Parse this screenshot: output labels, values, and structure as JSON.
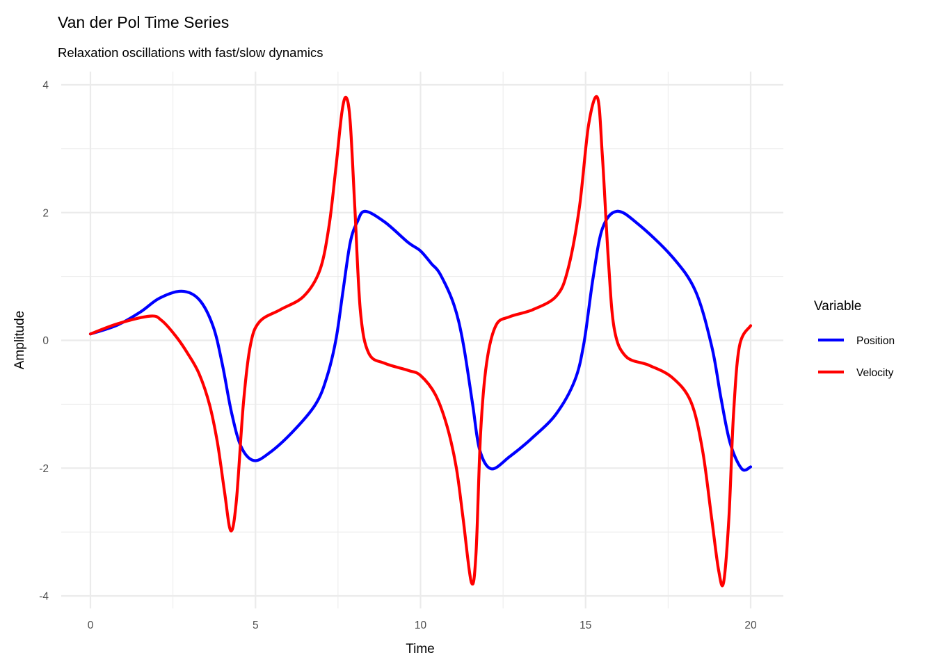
{
  "chart_data": {
    "type": "line",
    "title": "Van der Pol Time Series",
    "subtitle": "Relaxation oscillations with fast/slow dynamics",
    "xlabel": "Time",
    "ylabel": "Amplitude",
    "xlim": [
      0,
      20
    ],
    "ylim": [
      -4,
      4
    ],
    "xticks": [
      0,
      5,
      10,
      15,
      20
    ],
    "yticks": [
      -4,
      -2,
      0,
      2,
      4
    ],
    "xtick_labels": [
      "0",
      "5",
      "10",
      "15",
      "20"
    ],
    "ytick_labels": [
      "-4",
      "-2",
      "0",
      "2",
      "4"
    ],
    "grid": true,
    "legend": {
      "title": "Variable",
      "placement": "right"
    },
    "series": [
      {
        "name": "Position",
        "color": "#0000ff",
        "x": [
          0,
          0.82,
          1.53,
          2.09,
          2.76,
          3.29,
          3.71,
          3.99,
          4.27,
          4.56,
          4.94,
          5.4,
          6.11,
          6.81,
          7.16,
          7.44,
          7.65,
          7.87,
          8.08,
          8.32,
          8.92,
          9.63,
          10.0,
          10.33,
          10.59,
          11.01,
          11.29,
          11.58,
          11.79,
          12.14,
          12.7,
          13.4,
          14.11,
          14.67,
          14.95,
          15.23,
          15.51,
          15.94,
          16.57,
          17.62,
          18.33,
          18.82,
          19.1,
          19.38,
          19.73,
          20.0
        ],
        "y": [
          0.1,
          0.24,
          0.45,
          0.66,
          0.77,
          0.64,
          0.23,
          -0.36,
          -1.12,
          -1.66,
          -1.88,
          -1.77,
          -1.44,
          -1.01,
          -0.58,
          0.02,
          0.77,
          1.53,
          1.85,
          2.02,
          1.85,
          1.53,
          1.4,
          1.2,
          1.04,
          0.56,
          -0.04,
          -1.01,
          -1.71,
          -2.01,
          -1.82,
          -1.52,
          -1.15,
          -0.63,
          -0.04,
          0.99,
          1.75,
          2.02,
          1.83,
          1.31,
          0.77,
          -0.09,
          -0.9,
          -1.61,
          -2.01,
          -1.98
        ]
      },
      {
        "name": "Velocity",
        "color": "#ff0000",
        "x": [
          0,
          0.82,
          1.81,
          2.16,
          2.58,
          2.94,
          3.29,
          3.61,
          3.85,
          4.06,
          4.25,
          4.42,
          4.63,
          4.84,
          5.12,
          5.75,
          6.46,
          6.95,
          7.23,
          7.44,
          7.62,
          7.75,
          7.87,
          8.01,
          8.18,
          8.43,
          8.92,
          9.63,
          10.0,
          10.45,
          10.8,
          11.08,
          11.29,
          11.54,
          11.68,
          11.82,
          12.0,
          12.28,
          12.7,
          13.4,
          14.11,
          14.46,
          14.81,
          15.09,
          15.36,
          15.51,
          15.69,
          15.87,
          16.22,
          16.92,
          17.62,
          18.19,
          18.54,
          18.82,
          19.03,
          19.18,
          19.34,
          19.48,
          19.66,
          20.0
        ],
        "y": [
          0.1,
          0.26,
          0.38,
          0.31,
          0.07,
          -0.2,
          -0.52,
          -1.01,
          -1.61,
          -2.36,
          -2.98,
          -2.52,
          -1.01,
          -0.09,
          0.29,
          0.48,
          0.69,
          1.1,
          1.8,
          2.72,
          3.58,
          3.8,
          3.42,
          2.07,
          0.45,
          -0.2,
          -0.36,
          -0.47,
          -0.55,
          -0.85,
          -1.34,
          -1.98,
          -2.79,
          -3.79,
          -3.34,
          -1.44,
          -0.36,
          0.23,
          0.37,
          0.48,
          0.69,
          1.1,
          2.07,
          3.37,
          3.8,
          2.88,
          1.26,
          0.18,
          -0.25,
          -0.39,
          -0.58,
          -0.96,
          -1.71,
          -2.79,
          -3.6,
          -3.79,
          -2.79,
          -1.17,
          -0.09,
          0.23
        ]
      }
    ]
  }
}
